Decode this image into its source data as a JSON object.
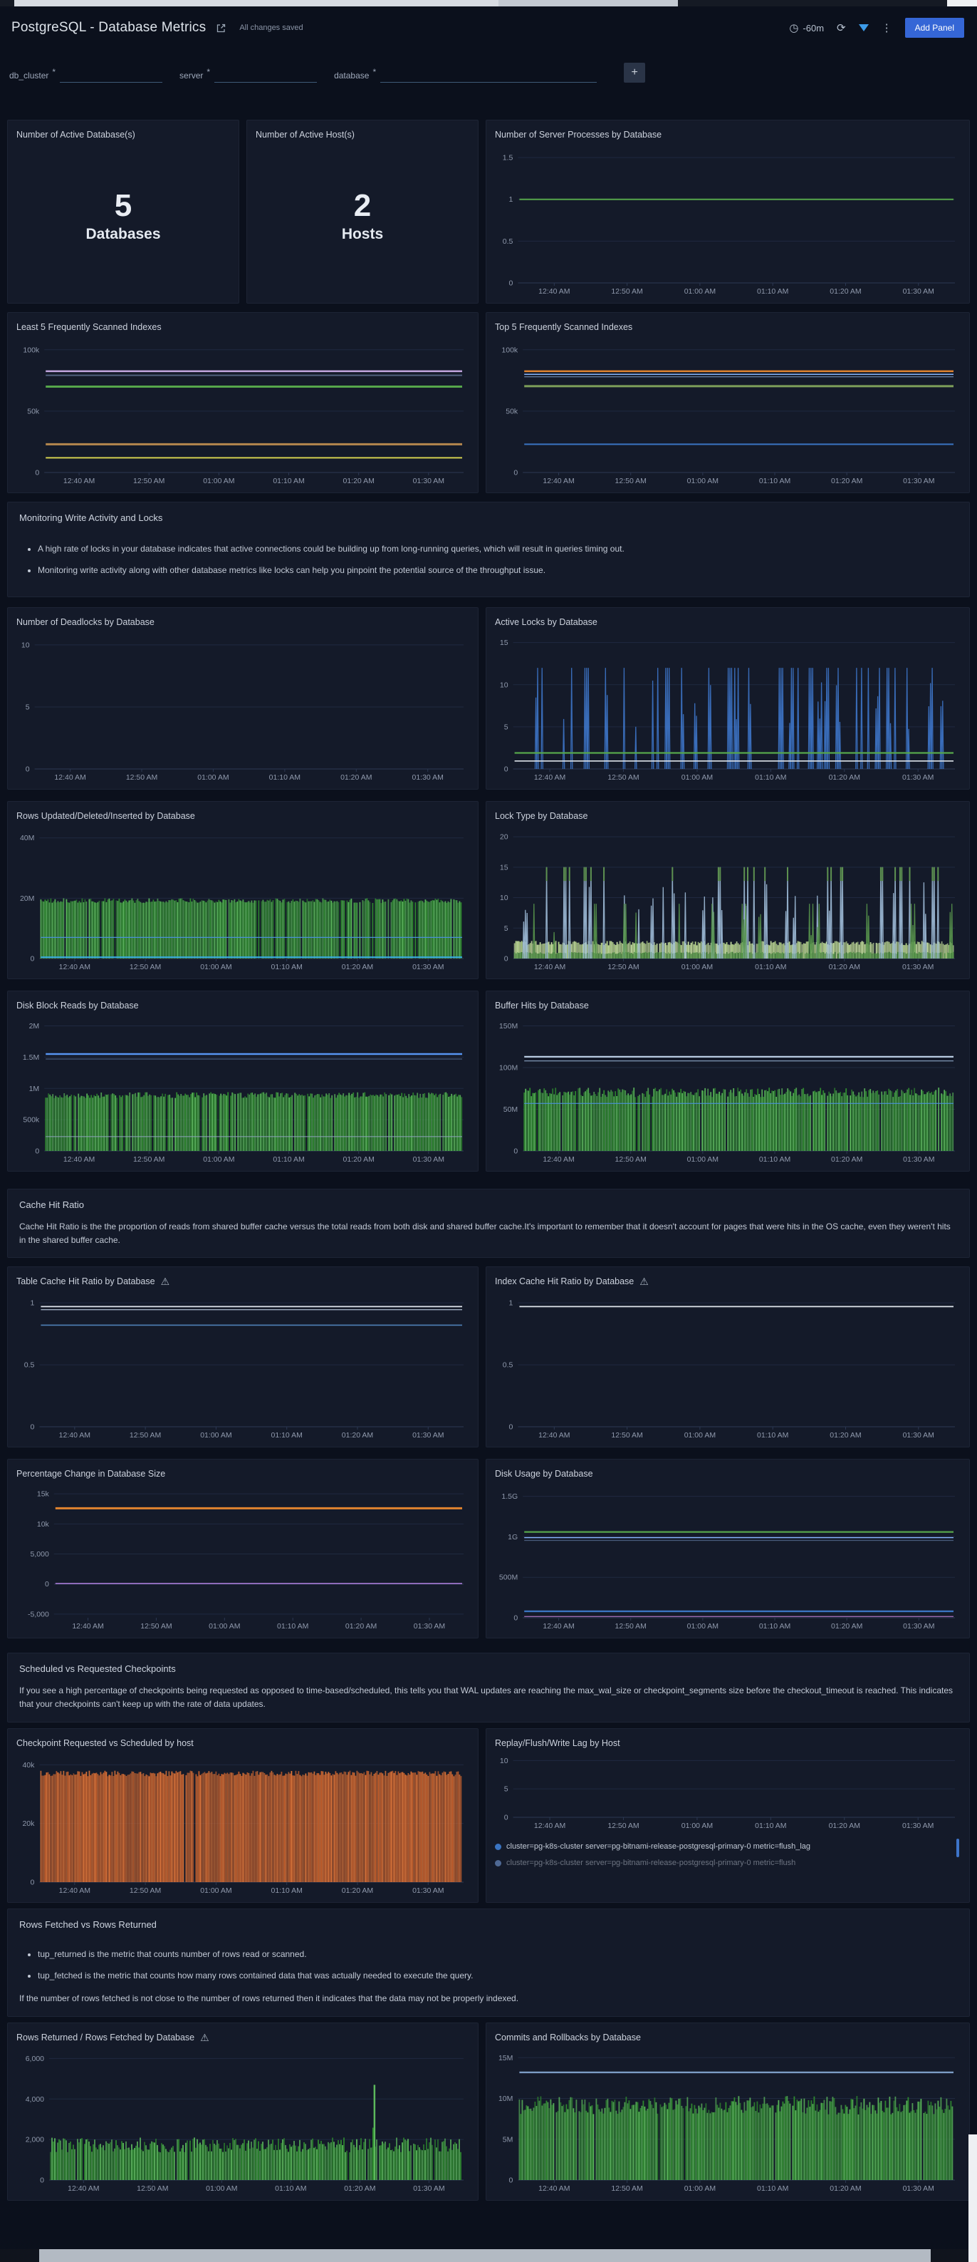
{
  "header": {
    "title": "PostgreSQL - Database Metrics",
    "saved_status": "All changes saved",
    "time_range": "-60m",
    "add_panel": "Add Panel"
  },
  "icons": {
    "warning": "⚠",
    "clock": "◷",
    "refresh": "⟳",
    "kebab": "⋮",
    "plus": "+"
  },
  "variables": {
    "items": [
      {
        "name": "db_cluster",
        "star": "*"
      },
      {
        "name": "server",
        "star": "*"
      },
      {
        "name": "database",
        "star": "*"
      }
    ]
  },
  "stats": [
    {
      "title": "Number of Active Database(s)",
      "value": "5",
      "unit": "Databases"
    },
    {
      "title": "Number of Active Host(s)",
      "value": "2",
      "unit": "Hosts"
    }
  ],
  "sections": [
    {
      "title": "Monitoring Write Activity and Locks",
      "bullets": [
        "A high rate of locks in your database indicates that active connections could be building up from long-running queries, which will result in queries timing out.",
        "Monitoring write activity along with other database metrics like locks can help you pinpoint the potential source of the throughput issue."
      ],
      "paragraphs": []
    },
    {
      "title": "Cache Hit Ratio",
      "bullets": [],
      "paragraphs": [
        "Cache Hit Ratio is the the proportion of reads from shared buffer cache versus the total reads from both disk and shared buffer cache.It's important to remember that it doesn't account for pages that were hits in the OS cache, even they weren't hits in the shared buffer cache."
      ]
    },
    {
      "title": "Scheduled vs Requested Checkpoints",
      "bullets": [],
      "paragraphs": [
        "If you see a high percentage of checkpoints being requested as opposed to time-based/scheduled, this tells you that WAL updates are reaching the max_wal_size or checkpoint_segments size before the checkout_timeout is reached. This indicates that your checkpoints can't keep up with the rate of data updates."
      ]
    },
    {
      "title": "Rows Fetched vs Rows Returned",
      "bullets": [
        "tup_returned is the metric that counts number of rows read or scanned.",
        "tup_fetched is the metric that counts how many rows contained data that was actually needed to execute the query."
      ],
      "paragraphs": [
        "If the number of rows fetched is not close to the number of rows returned then it indicates that the data may not be properly indexed."
      ]
    }
  ],
  "time_axis": [
    "12:40 AM",
    "12:50 AM",
    "01:00 AM",
    "01:10 AM",
    "01:20 AM",
    "01:30 AM"
  ],
  "chart_data": [
    {
      "type": "line",
      "title": "Number of Server Processes by Database",
      "warning": false,
      "ylim": [
        0,
        1.62
      ],
      "yticks": [
        {
          "v": 0,
          "l": "0"
        },
        {
          "v": 0.5,
          "l": "0.5"
        },
        {
          "v": 1,
          "l": "1"
        },
        {
          "v": 1.5,
          "l": "1.5"
        }
      ],
      "series": [
        {
          "type": "flat",
          "v": 1,
          "color": "#56a64b",
          "lw": 2
        }
      ]
    },
    {
      "type": "line",
      "title": "Least 5 Frequently Scanned Indexes",
      "warning": false,
      "ylim": [
        0,
        108000
      ],
      "yticks": [
        {
          "v": 0,
          "l": "0"
        },
        {
          "v": 50000,
          "l": "50k"
        },
        {
          "v": 100000,
          "l": "100k"
        }
      ],
      "series": [
        {
          "type": "flat",
          "v": 82500,
          "color": "#c3a6e0",
          "lw": 2.5
        },
        {
          "type": "flat",
          "v": 79200,
          "color": "#51607e",
          "lw": 2
        },
        {
          "type": "flat",
          "v": 70000,
          "color": "#56a64b",
          "lw": 3
        },
        {
          "type": "flat",
          "v": 23000,
          "color": "#b4874e",
          "lw": 3
        },
        {
          "type": "flat",
          "v": 12000,
          "color": "#d3d04f",
          "lw": 2
        }
      ]
    },
    {
      "type": "line",
      "title": "Top 5 Frequently Scanned Indexes",
      "warning": false,
      "ylim": [
        0,
        108000
      ],
      "yticks": [
        {
          "v": 0,
          "l": "0"
        },
        {
          "v": 50000,
          "l": "50k"
        },
        {
          "v": 100000,
          "l": "100k"
        }
      ],
      "series": [
        {
          "type": "flat",
          "v": 82500,
          "color": "#e0832f",
          "lw": 2.5
        },
        {
          "type": "flat",
          "v": 80000,
          "color": "#8ab8ff",
          "lw": 1.5
        },
        {
          "type": "flat",
          "v": 78000,
          "color": "#5d7392",
          "lw": 1.5
        },
        {
          "type": "flat",
          "v": 70300,
          "color": "#7d9f5a",
          "lw": 3
        },
        {
          "type": "flat",
          "v": 23000,
          "color": "#3a74c2",
          "lw": 2
        }
      ]
    },
    {
      "type": "line",
      "title": "Number of Deadlocks by Database",
      "warning": false,
      "ylim": [
        0,
        10.8
      ],
      "yticks": [
        {
          "v": 0,
          "l": "0"
        },
        {
          "v": 5,
          "l": "5"
        },
        {
          "v": 10,
          "l": "10"
        }
      ],
      "series": []
    },
    {
      "type": "line",
      "title": "Active Locks by Database",
      "warning": false,
      "ylim": [
        0,
        15.9
      ],
      "yticks": [
        {
          "v": 0,
          "l": "0"
        },
        {
          "v": 5,
          "l": "5"
        },
        {
          "v": 10,
          "l": "10"
        },
        {
          "v": 15,
          "l": "15"
        }
      ],
      "series": [
        {
          "type": "spikes",
          "peak": 12,
          "color": "#3d76c9",
          "density": 0.6
        },
        {
          "type": "flat",
          "v": 1.9,
          "color": "#56a64b",
          "lw": 2.2
        },
        {
          "type": "flat",
          "v": 0.95,
          "color": "#dde3ea",
          "lw": 1.6
        }
      ]
    },
    {
      "type": "area",
      "title": "Rows Updated/Deleted/Inserted by Database",
      "warning": false,
      "ylim": [
        0,
        43000000
      ],
      "yticks": [
        {
          "v": 0,
          "l": "0"
        },
        {
          "v": 20000000,
          "l": "20M"
        },
        {
          "v": 40000000,
          "l": "40M"
        }
      ],
      "series": [
        {
          "type": "dense",
          "base": 0,
          "peak": 20000000,
          "colors": [
            "#2f8c2f",
            "#5cb85c"
          ],
          "vary": 0.08,
          "skip": 0.05
        },
        {
          "type": "flat",
          "v": 7000000,
          "color": "#4a90d9",
          "lw": 1.2
        },
        {
          "type": "flat",
          "v": 450000,
          "color": "#38a8e0",
          "lw": 2
        }
      ]
    },
    {
      "type": "line",
      "title": "Lock Type by Database",
      "warning": false,
      "ylim": [
        0,
        21.3
      ],
      "yticks": [
        {
          "v": 0,
          "l": "0"
        },
        {
          "v": 5,
          "l": "5"
        },
        {
          "v": 10,
          "l": "10"
        },
        {
          "v": 15,
          "l": "15"
        },
        {
          "v": 20,
          "l": "20"
        }
      ],
      "series": [
        {
          "type": "dense",
          "base": 0,
          "peak": 2.9,
          "colors": [
            "#b9d98a",
            "#cfe8a8"
          ],
          "vary": 0.25,
          "skip": 0.03
        },
        {
          "type": "dense",
          "base": 0,
          "peak": 1.1,
          "colors": [
            "#3f7a39",
            "#589a4d"
          ],
          "vary": 0.3,
          "skip": 0.05
        },
        {
          "type": "spikes",
          "peak": 15,
          "color": "#9fbcd8",
          "density": 0.55,
          "capcolor": "#5d9150"
        },
        {
          "type": "spikes",
          "peak": 9,
          "color": "#57944b",
          "density": 0.25
        }
      ]
    },
    {
      "type": "area",
      "title": "Disk Block Reads by Database",
      "warning": false,
      "ylim": [
        0,
        2120000
      ],
      "yticks": [
        {
          "v": 0,
          "l": "0"
        },
        {
          "v": 500000,
          "l": "500k"
        },
        {
          "v": 1000000,
          "l": "1M"
        },
        {
          "v": 1500000,
          "l": "1.5M"
        },
        {
          "v": 2000000,
          "l": "2M"
        }
      ],
      "series": [
        {
          "type": "dense",
          "base": 0,
          "peak": 940000,
          "colors": [
            "#2f8c2f",
            "#5cb85c"
          ],
          "vary": 0.1,
          "skip": 0.05
        },
        {
          "type": "flat",
          "v": 1550000,
          "color": "#5794f2",
          "lw": 2.5
        },
        {
          "type": "flat",
          "v": 1470000,
          "color": "#46597a",
          "lw": 1.2
        },
        {
          "type": "flat",
          "v": 230000,
          "color": "#8fa3bd",
          "lw": 1
        }
      ]
    },
    {
      "type": "area",
      "title": "Buffer Hits by Database",
      "warning": false,
      "ylim": [
        0,
        159000000
      ],
      "yticks": [
        {
          "v": 0,
          "l": "0"
        },
        {
          "v": 50000000,
          "l": "50M"
        },
        {
          "v": 100000000,
          "l": "100M"
        },
        {
          "v": 150000000,
          "l": "150M"
        }
      ],
      "series": [
        {
          "type": "dense",
          "base": 0,
          "peak": 76000000,
          "colors": [
            "#2f8c2f",
            "#5cb85c"
          ],
          "vary": 0.15,
          "skip": 0.05
        },
        {
          "type": "flat",
          "v": 113000000,
          "color": "#c2d6ec",
          "lw": 2.2
        },
        {
          "type": "flat",
          "v": 108000000,
          "color": "#7f96b5",
          "lw": 1.2
        },
        {
          "type": "flat",
          "v": 57000000,
          "color": "#4a90d9",
          "lw": 1.2
        }
      ]
    },
    {
      "type": "line",
      "title": "Table Cache Hit Ratio by Database",
      "warning": true,
      "ylim": [
        0,
        1.07
      ],
      "yticks": [
        {
          "v": 0,
          "l": "0"
        },
        {
          "v": 0.5,
          "l": "0.5"
        },
        {
          "v": 1,
          "l": "1"
        }
      ],
      "series": [
        {
          "type": "flat",
          "v": 0.97,
          "color": "#e2e7ee",
          "lw": 1.8
        },
        {
          "type": "flat",
          "v": 0.945,
          "color": "#9fadc0",
          "lw": 1.4
        },
        {
          "type": "flat",
          "v": 0.82,
          "color": "#4f81b8",
          "lw": 1.6
        }
      ]
    },
    {
      "type": "line",
      "title": "Index Cache Hit Ratio by Database",
      "warning": true,
      "ylim": [
        0,
        1.07
      ],
      "yticks": [
        {
          "v": 0,
          "l": "0"
        },
        {
          "v": 0.5,
          "l": "0.5"
        },
        {
          "v": 1,
          "l": "1"
        }
      ],
      "series": [
        {
          "type": "flat",
          "v": 0.97,
          "color": "#dfe5ec",
          "lw": 1.8
        }
      ]
    },
    {
      "type": "line",
      "title": "Percentage Change in Database Size",
      "warning": false,
      "ylim": [
        -5600,
        16200
      ],
      "yticks": [
        {
          "v": -5000,
          "l": "-5,000"
        },
        {
          "v": 0,
          "l": "0"
        },
        {
          "v": 5000,
          "l": "5,000"
        },
        {
          "v": 10000,
          "l": "10k"
        },
        {
          "v": 15000,
          "l": "15k"
        }
      ],
      "series": [
        {
          "type": "flat",
          "v": 12600,
          "color": "#e0832f",
          "lw": 3
        },
        {
          "type": "flat",
          "v": 100,
          "color": "#a77bd4",
          "lw": 1.6
        }
      ]
    },
    {
      "type": "line",
      "title": "Disk Usage by Database",
      "warning": false,
      "ylim": [
        0,
        1620000000
      ],
      "yticks": [
        {
          "v": 0,
          "l": "0"
        },
        {
          "v": 500000000,
          "l": "500M"
        },
        {
          "v": 1000000000,
          "l": "1G"
        },
        {
          "v": 1500000000,
          "l": "1.5G"
        }
      ],
      "series": [
        {
          "type": "flat",
          "v": 1060000000,
          "color": "#56a64b",
          "lw": 2.2
        },
        {
          "type": "flat",
          "v": 990000000,
          "color": "#8ab8ff",
          "lw": 1.4
        },
        {
          "type": "flat",
          "v": 955000000,
          "color": "#4a5d7d",
          "lw": 1.2
        },
        {
          "type": "flat",
          "v": 80000000,
          "color": "#3a74c2",
          "lw": 2.4
        },
        {
          "type": "flat",
          "v": 15000000,
          "color": "#9b6bb3",
          "lw": 1.4
        }
      ]
    },
    {
      "type": "area",
      "title": "Checkpoint Requested vs Scheduled by host",
      "warning": false,
      "ylim": [
        0,
        43000
      ],
      "yticks": [
        {
          "v": 0,
          "l": "0"
        },
        {
          "v": 20000,
          "l": "20k"
        },
        {
          "v": 40000,
          "l": "40k"
        }
      ],
      "series": [
        {
          "type": "dense",
          "base": 0,
          "peak": 38000,
          "colors": [
            "#c9602c",
            "#e2773a"
          ],
          "vary": 0.05,
          "skip": 0.015
        }
      ]
    },
    {
      "type": "line",
      "title": "Replay/Flush/Write Lag by Host",
      "warning": false,
      "ylim": [
        0,
        10.8
      ],
      "yticks": [
        {
          "v": 0,
          "l": "0"
        },
        {
          "v": 5,
          "l": "5"
        },
        {
          "v": 10,
          "l": "10"
        }
      ],
      "series": [],
      "legend": [
        {
          "color": "#3a74c2",
          "text": "cluster=pg-k8s-cluster server=pg-bitnami-release-postgresql-primary-0 metric=flush_lag",
          "clip": false
        },
        {
          "color": "#8ab8ff",
          "text": "cluster=pg-k8s-cluster server=pg-bitnami-release-postgresql-primary-0 metric=flush",
          "clip": true
        }
      ]
    },
    {
      "type": "area",
      "title": "Rows Returned / Rows Fetched by Database",
      "warning": true,
      "ylim": [
        0,
        6400
      ],
      "yticks": [
        {
          "v": 0,
          "l": "0"
        },
        {
          "v": 2000,
          "l": "2,000"
        },
        {
          "v": 4000,
          "l": "4,000"
        },
        {
          "v": 6000,
          "l": "6,000"
        }
      ],
      "series": [
        {
          "type": "dense",
          "base": 0,
          "peak": 2100,
          "colors": [
            "#2f8c2f",
            "#5cb85c"
          ],
          "vary": 0.35,
          "skip": 0.04,
          "spike": {
            "at": 0.785,
            "v": 4700
          }
        }
      ]
    },
    {
      "type": "area",
      "title": "Commits and Rollbacks by Database",
      "warning": false,
      "ylim": [
        0,
        15900000
      ],
      "yticks": [
        {
          "v": 0,
          "l": "0"
        },
        {
          "v": 5000000,
          "l": "5M"
        },
        {
          "v": 10000000,
          "l": "10M"
        },
        {
          "v": 15000000,
          "l": "15M"
        }
      ],
      "series": [
        {
          "type": "dense",
          "base": 0,
          "peak": 10300000,
          "colors": [
            "#2f8c2f",
            "#5cb85c"
          ],
          "vary": 0.22,
          "skip": 0.04
        },
        {
          "type": "flat",
          "v": 13200000,
          "color": "#7b9cc4",
          "lw": 2.4
        }
      ]
    }
  ]
}
